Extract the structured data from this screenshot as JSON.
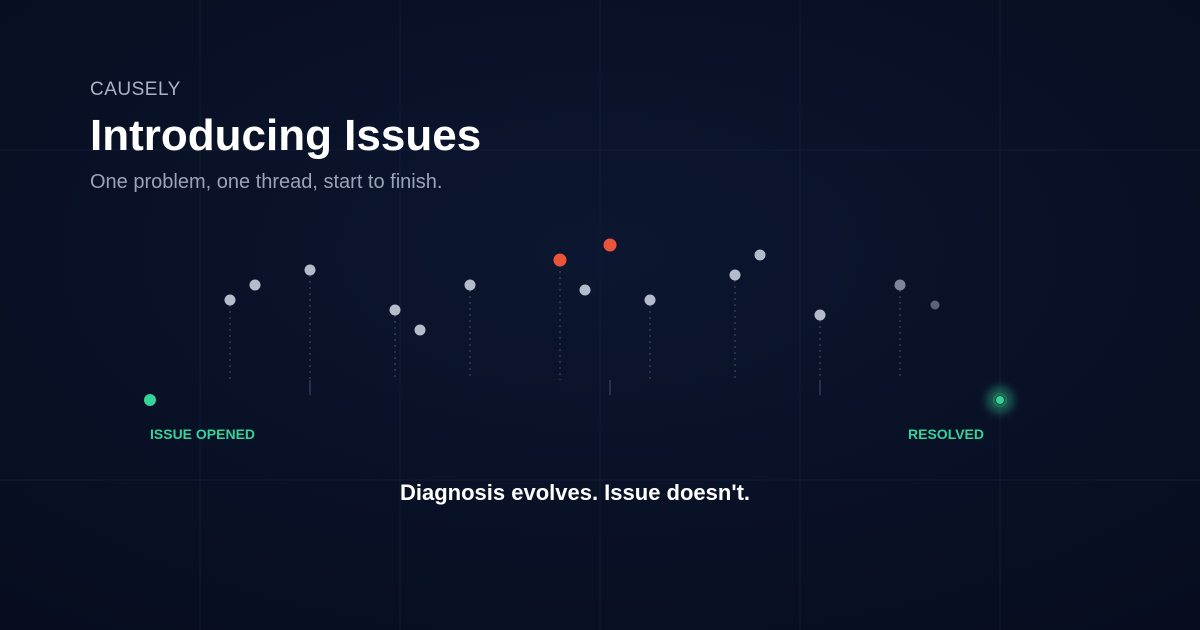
{
  "brand": "CAUSELY",
  "title": "Introducing Issues",
  "subtitle": "One problem, one thread, start to finish.",
  "timeline": {
    "start_label": "ISSUE OPENED",
    "end_label": "RESOLVED"
  },
  "tagline": "Diagnosis evolves. Issue doesn't."
}
